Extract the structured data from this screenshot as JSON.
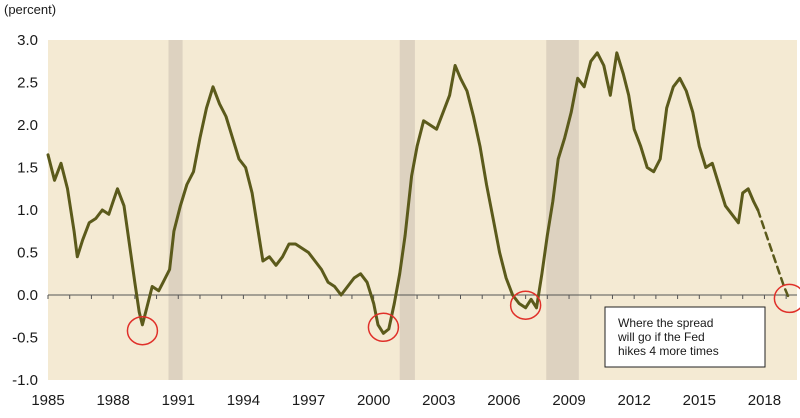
{
  "chart_data": {
    "type": "line",
    "y_unit": "(percent)",
    "ylim": [
      -1.0,
      3.0
    ],
    "xlim": [
      1985.0,
      2019.5
    ],
    "y_ticks": [
      "3.0",
      "2.5",
      "2.0",
      "1.5",
      "1.0",
      "0.5",
      "0.0",
      "-0.5",
      "-1.0"
    ],
    "y_tick_values": [
      3.0,
      2.5,
      2.0,
      1.5,
      1.0,
      0.5,
      0.0,
      -0.5,
      -1.0
    ],
    "x_ticks": [
      "1985",
      "1988",
      "1991",
      "1994",
      "1997",
      "2000",
      "2003",
      "2006",
      "2009",
      "2012",
      "2015",
      "2018"
    ],
    "x_tick_values": [
      1985,
      1988,
      1991,
      1994,
      1997,
      2000,
      2003,
      2006,
      2009,
      2012,
      2015,
      2018
    ],
    "grid": false,
    "recessions": [
      [
        1990.55,
        1991.2
      ],
      [
        2001.2,
        2001.9
      ],
      [
        2007.95,
        2009.45
      ]
    ],
    "series": [
      {
        "values": [
          [
            1985.0,
            1.65
          ],
          [
            1985.3,
            1.35
          ],
          [
            1985.6,
            1.55
          ],
          [
            1985.9,
            1.25
          ],
          [
            1986.2,
            0.75
          ],
          [
            1986.35,
            0.45
          ],
          [
            1986.6,
            0.65
          ],
          [
            1986.9,
            0.85
          ],
          [
            1987.2,
            0.9
          ],
          [
            1987.5,
            1.0
          ],
          [
            1987.8,
            0.95
          ],
          [
            1988.0,
            1.1
          ],
          [
            1988.2,
            1.25
          ],
          [
            1988.5,
            1.05
          ],
          [
            1988.75,
            0.6
          ],
          [
            1989.0,
            0.15
          ],
          [
            1989.2,
            -0.2
          ],
          [
            1989.35,
            -0.35
          ],
          [
            1989.55,
            -0.15
          ],
          [
            1989.8,
            0.1
          ],
          [
            1990.1,
            0.05
          ],
          [
            1990.3,
            0.15
          ],
          [
            1990.6,
            0.3
          ],
          [
            1990.8,
            0.75
          ],
          [
            1991.1,
            1.05
          ],
          [
            1991.4,
            1.3
          ],
          [
            1991.7,
            1.45
          ],
          [
            1992.0,
            1.85
          ],
          [
            1992.3,
            2.2
          ],
          [
            1992.6,
            2.45
          ],
          [
            1992.9,
            2.25
          ],
          [
            1993.2,
            2.1
          ],
          [
            1993.5,
            1.85
          ],
          [
            1993.8,
            1.6
          ],
          [
            1994.1,
            1.5
          ],
          [
            1994.4,
            1.2
          ],
          [
            1994.65,
            0.8
          ],
          [
            1994.9,
            0.4
          ],
          [
            1995.2,
            0.45
          ],
          [
            1995.5,
            0.35
          ],
          [
            1995.8,
            0.45
          ],
          [
            1996.1,
            0.6
          ],
          [
            1996.4,
            0.6
          ],
          [
            1996.7,
            0.55
          ],
          [
            1997.0,
            0.5
          ],
          [
            1997.3,
            0.4
          ],
          [
            1997.6,
            0.3
          ],
          [
            1997.9,
            0.15
          ],
          [
            1998.2,
            0.1
          ],
          [
            1998.5,
            0.0
          ],
          [
            1998.8,
            0.1
          ],
          [
            1999.1,
            0.2
          ],
          [
            1999.4,
            0.25
          ],
          [
            1999.7,
            0.15
          ],
          [
            2000.0,
            -0.1
          ],
          [
            2000.2,
            -0.35
          ],
          [
            2000.45,
            -0.45
          ],
          [
            2000.7,
            -0.4
          ],
          [
            2000.95,
            -0.1
          ],
          [
            2001.2,
            0.25
          ],
          [
            2001.45,
            0.7
          ],
          [
            2001.75,
            1.4
          ],
          [
            2002.0,
            1.75
          ],
          [
            2002.3,
            2.05
          ],
          [
            2002.6,
            2.0
          ],
          [
            2002.9,
            1.95
          ],
          [
            2003.2,
            2.15
          ],
          [
            2003.5,
            2.35
          ],
          [
            2003.75,
            2.7
          ],
          [
            2004.0,
            2.55
          ],
          [
            2004.3,
            2.4
          ],
          [
            2004.6,
            2.1
          ],
          [
            2004.9,
            1.75
          ],
          [
            2005.2,
            1.3
          ],
          [
            2005.5,
            0.9
          ],
          [
            2005.8,
            0.5
          ],
          [
            2006.1,
            0.2
          ],
          [
            2006.4,
            0.0
          ],
          [
            2006.7,
            -0.1
          ],
          [
            2007.0,
            -0.15
          ],
          [
            2007.25,
            -0.05
          ],
          [
            2007.5,
            -0.15
          ],
          [
            2007.75,
            0.25
          ],
          [
            2008.0,
            0.7
          ],
          [
            2008.25,
            1.1
          ],
          [
            2008.5,
            1.6
          ],
          [
            2008.8,
            1.85
          ],
          [
            2009.1,
            2.15
          ],
          [
            2009.4,
            2.55
          ],
          [
            2009.7,
            2.45
          ],
          [
            2010.0,
            2.75
          ],
          [
            2010.3,
            2.85
          ],
          [
            2010.6,
            2.7
          ],
          [
            2010.9,
            2.35
          ],
          [
            2011.2,
            2.85
          ],
          [
            2011.5,
            2.6
          ],
          [
            2011.75,
            2.35
          ],
          [
            2012.0,
            1.95
          ],
          [
            2012.3,
            1.75
          ],
          [
            2012.6,
            1.5
          ],
          [
            2012.9,
            1.45
          ],
          [
            2013.2,
            1.6
          ],
          [
            2013.5,
            2.2
          ],
          [
            2013.8,
            2.45
          ],
          [
            2014.1,
            2.55
          ],
          [
            2014.4,
            2.4
          ],
          [
            2014.7,
            2.15
          ],
          [
            2015.0,
            1.75
          ],
          [
            2015.3,
            1.5
          ],
          [
            2015.6,
            1.55
          ],
          [
            2015.9,
            1.3
          ],
          [
            2016.2,
            1.05
          ],
          [
            2016.5,
            0.95
          ],
          [
            2016.8,
            0.85
          ],
          [
            2017.0,
            1.2
          ],
          [
            2017.25,
            1.25
          ],
          [
            2017.5,
            1.1
          ],
          [
            2017.7,
            1.0
          ]
        ]
      },
      {
        "dashed": true,
        "values": [
          [
            2017.7,
            1.0
          ],
          [
            2018.3,
            0.55
          ],
          [
            2018.9,
            0.1
          ],
          [
            2019.15,
            -0.05
          ]
        ]
      }
    ],
    "annotations": [
      {
        "text": [
          "Where the spread",
          "will go if the Fed",
          "hikes 4 more times"
        ]
      }
    ],
    "markers": [
      {
        "shape": "circle",
        "color": "#e0302a",
        "x": 1989.35,
        "y": -0.42
      },
      {
        "shape": "circle",
        "color": "#e0302a",
        "x": 2000.45,
        "y": -0.38
      },
      {
        "shape": "circle",
        "color": "#e0302a",
        "x": 2007.0,
        "y": -0.12
      },
      {
        "shape": "circle",
        "color": "#e0302a",
        "x": 2019.15,
        "y": -0.04
      }
    ],
    "colors": {
      "plot_background": "#f4ead3",
      "recession_band": "#ddd2c0",
      "line": "#5b5a1b",
      "marker": "#e0302a",
      "axis": "#555555"
    }
  }
}
